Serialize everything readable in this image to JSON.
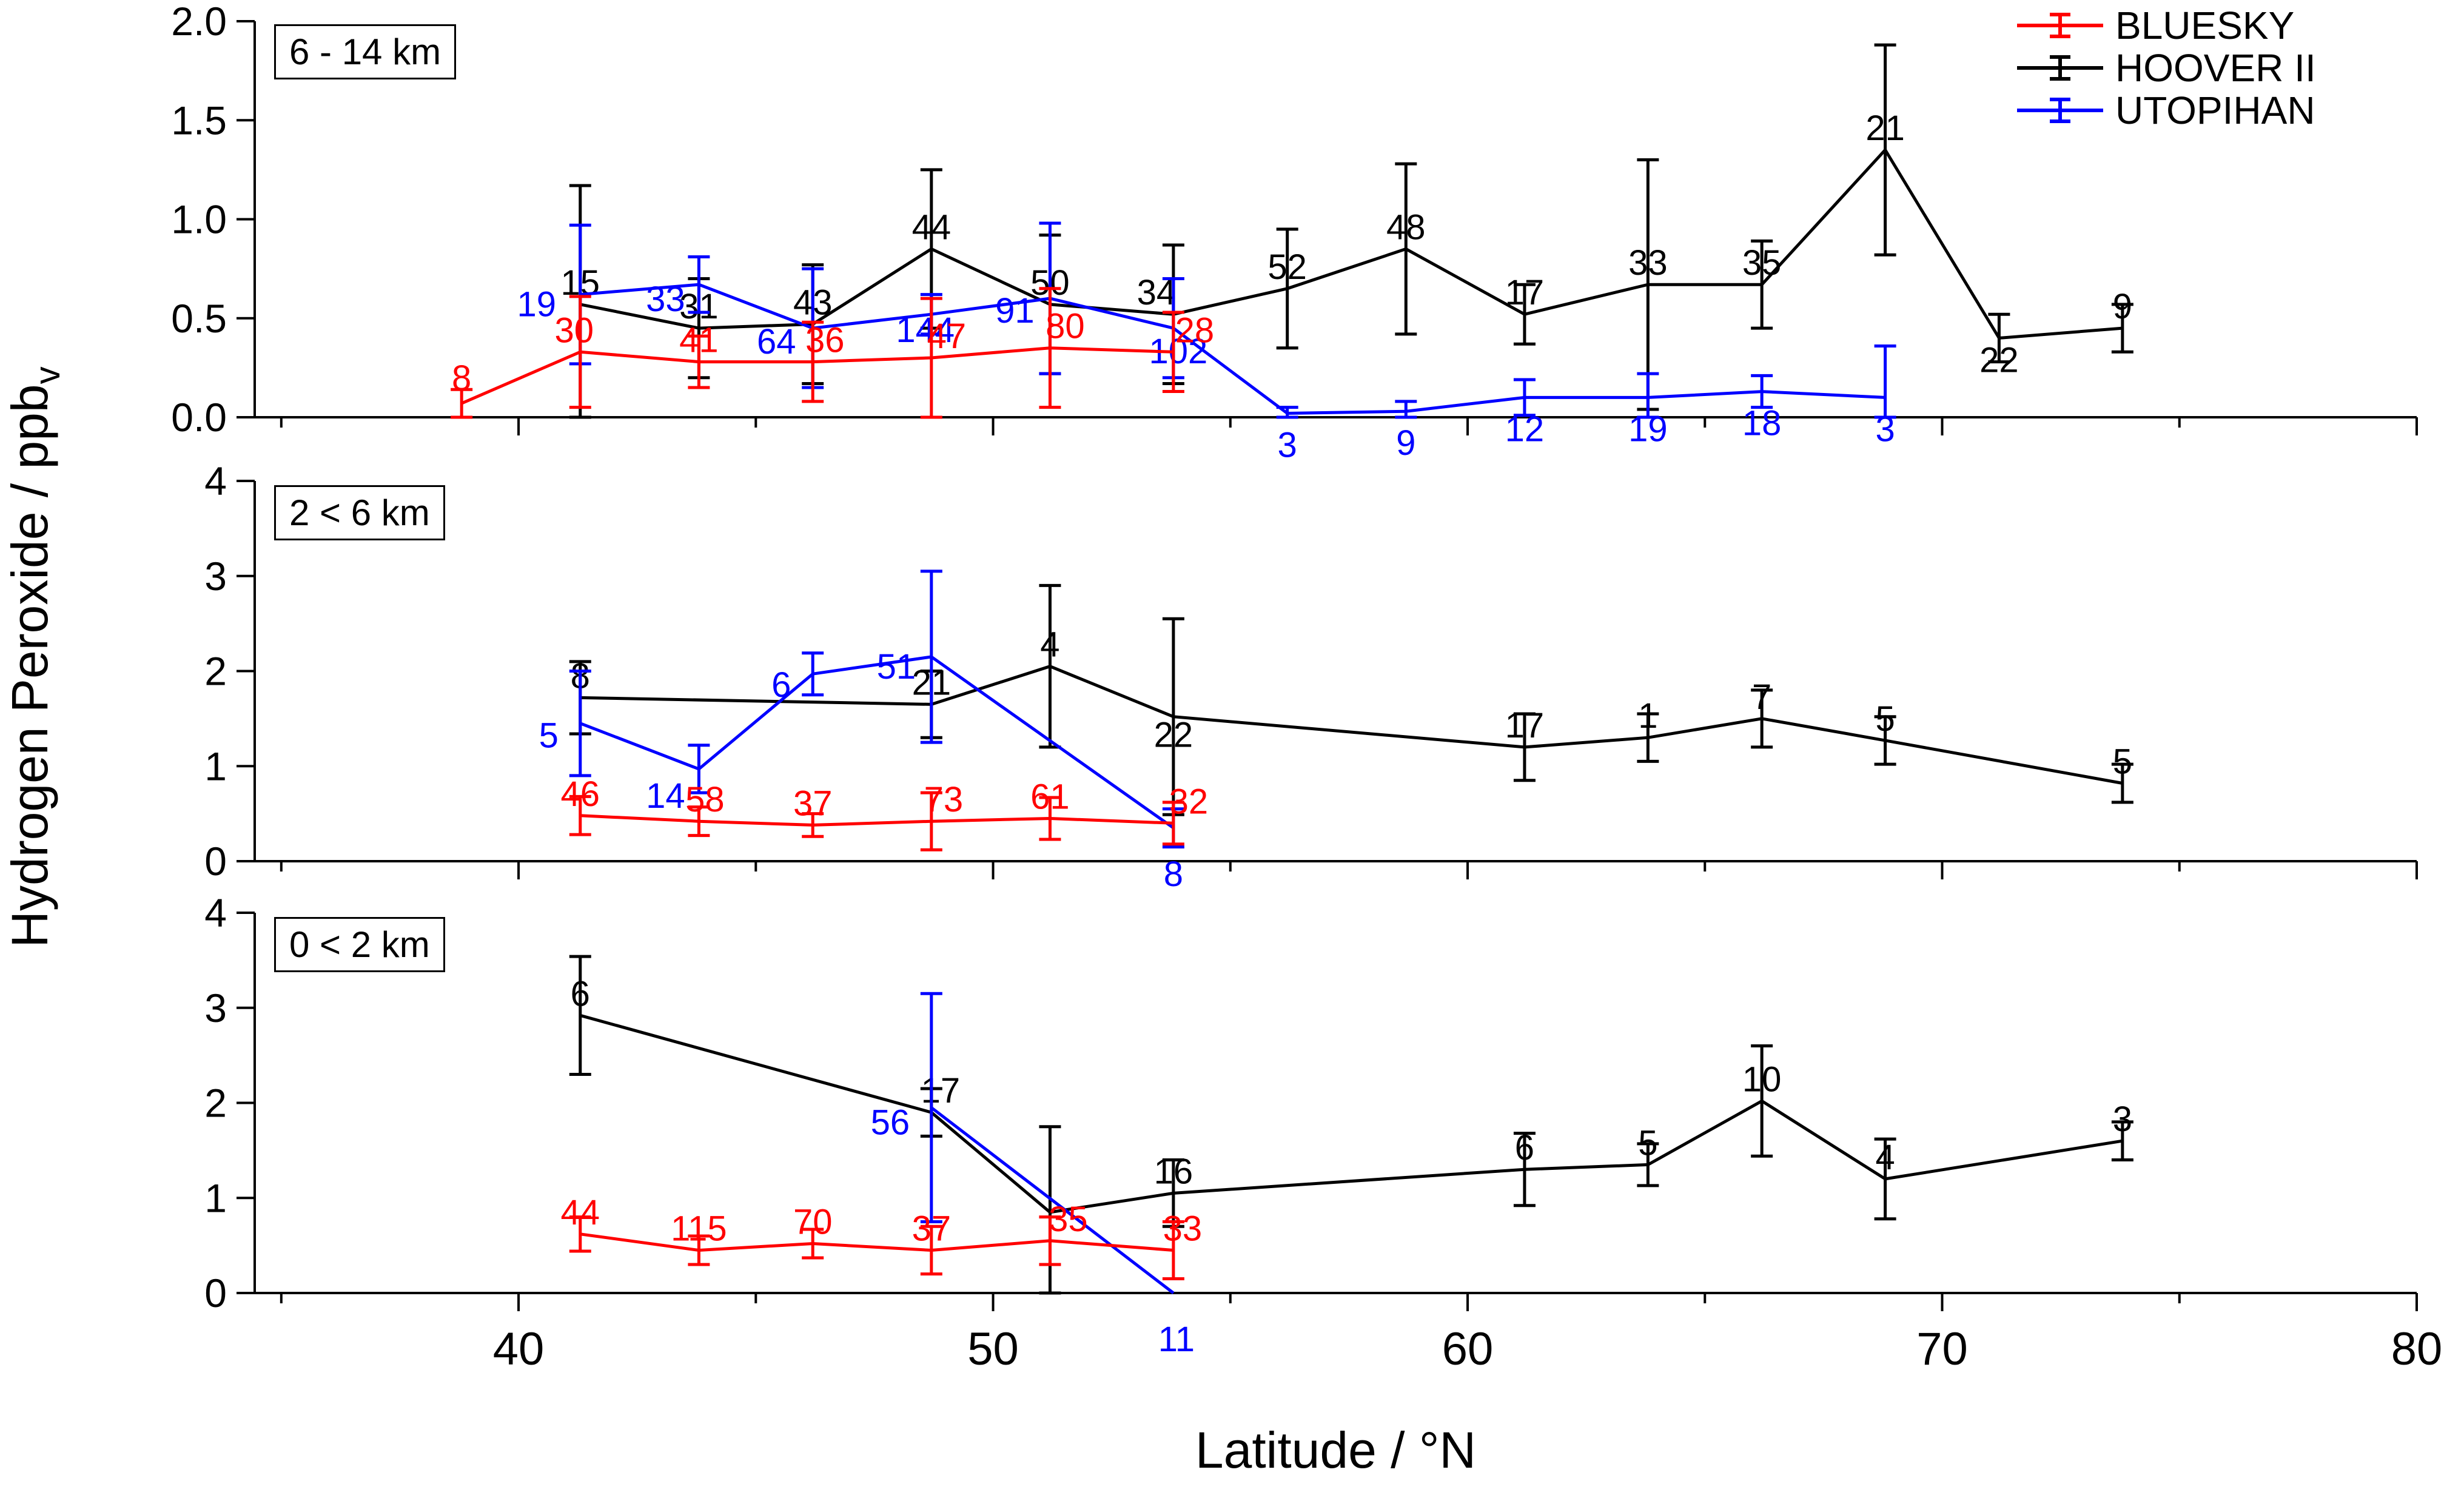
{
  "legend": [
    {
      "label": "BLUESKY",
      "color": "#ff0000"
    },
    {
      "label": "HOOVER II",
      "color": "#000000"
    },
    {
      "label": "UTOPIHAN",
      "color": "#0000ff"
    }
  ],
  "chart_data": {
    "type": "line",
    "point_format": "[latitude_degN, value_ppbv, error_halfwidth, label, label_dx_px, label_dy_px]",
    "x_axis": {
      "label": "Latitude / °N",
      "range": [
        34.44,
        80
      ],
      "major_ticks": [
        40,
        50,
        60,
        70,
        80
      ],
      "major_tick_labels": [
        "40",
        "50",
        "60",
        "70",
        "80"
      ],
      "minor_ticks": [
        35,
        45,
        55,
        65,
        75
      ]
    },
    "y_axis": {
      "label": "Hydrogen Peroxide / ppb",
      "label_sub": "v"
    },
    "panels": [
      {
        "label": "6 - 14 km",
        "ylim": [
          0,
          2
        ],
        "yticks": [
          0,
          0.5,
          1,
          1.5,
          2
        ],
        "ytick_labels": [
          "0.0",
          "0.5",
          "1.0",
          "1.5",
          "2.0"
        ],
        "series": [
          {
            "name": "HOOVER II",
            "color": "#000000",
            "points": [
              [
                41.3,
                0.57,
                0.6,
                "15"
              ],
              [
                43.8,
                0.45,
                0.25,
                "31"
              ],
              [
                46.2,
                0.47,
                0.3,
                "43"
              ],
              [
                48.7,
                0.85,
                0.4,
                "44"
              ],
              [
                51.2,
                0.57,
                0.35,
                "50"
              ],
              [
                53.8,
                0.52,
                0.35,
                "34",
                -28,
                0
              ],
              [
                56.2,
                0.65,
                0.3,
                "52"
              ],
              [
                58.7,
                0.85,
                0.43,
                "48"
              ],
              [
                61.2,
                0.52,
                0.15,
                "17"
              ],
              [
                63.8,
                0.67,
                0.63,
                "33"
              ],
              [
                66.2,
                0.67,
                0.22,
                "35"
              ],
              [
                68.8,
                1.35,
                0.53,
                "21"
              ],
              [
                71.2,
                0.4,
                0.12,
                "22",
                0,
                72
              ],
              [
                73.8,
                0.45,
                0.12,
                "9"
              ]
            ]
          },
          {
            "name": "UTOPIHAN",
            "color": "#0000ff",
            "points": [
              [
                41.3,
                0.62,
                0.35,
                "19",
                -72,
                52
              ],
              [
                43.8,
                0.67,
                0.14,
                "33",
                -55,
                60
              ],
              [
                46.2,
                0.45,
                0.3,
                "64",
                -60,
                58
              ],
              [
                48.7,
                0.52,
                0.1,
                "144",
                -10,
                62
              ],
              [
                51.2,
                0.6,
                0.38,
                "91",
                -58,
                56
              ],
              [
                53.8,
                0.45,
                0.25,
                "102",
                8,
                74
              ],
              [
                56.2,
                0.02,
                0.03,
                "3",
                0,
                88
              ],
              [
                58.7,
                0.03,
                0.05,
                "9",
                0,
                88
              ],
              [
                61.2,
                0.1,
                0.09,
                "12",
                0,
                88
              ],
              [
                63.8,
                0.1,
                0.12,
                "19",
                0,
                88
              ],
              [
                66.2,
                0.13,
                0.08,
                "18",
                0,
                88
              ],
              [
                68.8,
                0.1,
                0.26,
                "3",
                0,
                88
              ]
            ]
          },
          {
            "name": "BLUESKY",
            "color": "#ff0000",
            "points": [
              [
                38.8,
                0.07,
                0.07,
                "8",
                0,
                -6
              ],
              [
                41.3,
                0.33,
                0.28,
                "30",
                -10,
                0
              ],
              [
                43.8,
                0.28,
                0.13,
                "41"
              ],
              [
                46.2,
                0.28,
                0.2,
                "36",
                20,
                0
              ],
              [
                48.7,
                0.3,
                0.3,
                "47",
                25,
                0
              ],
              [
                51.2,
                0.35,
                0.3,
                "80",
                25,
                0
              ],
              [
                53.8,
                0.33,
                0.2,
                "28",
                35,
                0
              ]
            ]
          }
        ]
      },
      {
        "label": "2 < 6 km",
        "ylim": [
          0,
          4
        ],
        "yticks": [
          0,
          1,
          2,
          3,
          4
        ],
        "ytick_labels": [
          "0",
          "1",
          "2",
          "3",
          "4"
        ],
        "series": [
          {
            "name": "HOOVER II",
            "color": "#000000",
            "points": [
              [
                41.3,
                1.72,
                0.38,
                "8"
              ],
              [
                48.7,
                1.65,
                0.35,
                "21"
              ],
              [
                51.2,
                2.05,
                0.85,
                "4"
              ],
              [
                53.8,
                1.52,
                1.03,
                "22",
                0,
                66
              ],
              [
                61.2,
                1.2,
                0.35,
                "17"
              ],
              [
                63.8,
                1.3,
                0.25,
                "1"
              ],
              [
                66.2,
                1.5,
                0.3,
                "7"
              ],
              [
                68.8,
                1.27,
                0.25,
                "5"
              ],
              [
                73.8,
                0.82,
                0.2,
                "5"
              ]
            ]
          },
          {
            "name": "UTOPIHAN",
            "color": "#0000ff",
            "points": [
              [
                41.3,
                1.45,
                0.55,
                "5",
                -52,
                56
              ],
              [
                43.8,
                0.97,
                0.25,
                "14",
                -55,
                80
              ],
              [
                46.2,
                1.97,
                0.22,
                "6",
                -52,
                54
              ],
              [
                48.7,
                2.15,
                0.9,
                "51",
                -58,
                52
              ],
              [
                53.8,
                0.35,
                0.2,
                "8",
                0,
                112
              ]
            ]
          },
          {
            "name": "BLUESKY",
            "color": "#ff0000",
            "points": [
              [
                41.3,
                0.48,
                0.2,
                "46"
              ],
              [
                43.8,
                0.42,
                0.15,
                "58",
                10,
                0
              ],
              [
                46.2,
                0.38,
                0.12,
                "37"
              ],
              [
                48.7,
                0.42,
                0.3,
                "73",
                20,
                0
              ],
              [
                51.2,
                0.45,
                0.22,
                "61"
              ],
              [
                53.8,
                0.4,
                0.22,
                "32",
                25,
                0
              ]
            ]
          }
        ]
      },
      {
        "label": "0 < 2 km",
        "ylim": [
          0,
          4
        ],
        "yticks": [
          0,
          1,
          2,
          3,
          4
        ],
        "ytick_labels": [
          "0",
          "1",
          "2",
          "3",
          "4"
        ],
        "series": [
          {
            "name": "HOOVER II",
            "color": "#000000",
            "points": [
              [
                41.3,
                2.92,
                0.62,
                "6"
              ],
              [
                48.7,
                1.9,
                0.25,
                "17",
                15,
                0
              ],
              [
                51.2,
                0.85,
                0.9,
                ""
              ],
              [
                53.8,
                1.05,
                0.35,
                "16"
              ],
              [
                61.2,
                1.3,
                0.38,
                "6"
              ],
              [
                63.8,
                1.35,
                0.22,
                "5"
              ],
              [
                66.2,
                2.02,
                0.58,
                "10"
              ],
              [
                68.8,
                1.2,
                0.42,
                "4"
              ],
              [
                73.8,
                1.6,
                0.2,
                "3"
              ]
            ]
          },
          {
            "name": "UTOPIHAN",
            "color": "#0000ff",
            "points": [
              [
                48.7,
                1.95,
                1.2,
                "56",
                -68,
                60
              ],
              [
                53.8,
                0.0,
                0,
                "11",
                5,
                112
              ]
            ]
          },
          {
            "name": "BLUESKY",
            "color": "#ff0000",
            "points": [
              [
                41.3,
                0.62,
                0.18,
                "44"
              ],
              [
                43.8,
                0.45,
                0.15,
                "115"
              ],
              [
                46.2,
                0.52,
                0.15,
                "70"
              ],
              [
                48.7,
                0.45,
                0.25,
                "37"
              ],
              [
                51.2,
                0.55,
                0.25,
                "35",
                30,
                0
              ],
              [
                53.8,
                0.45,
                0.3,
                "33",
                15,
                0
              ]
            ]
          }
        ]
      }
    ]
  }
}
